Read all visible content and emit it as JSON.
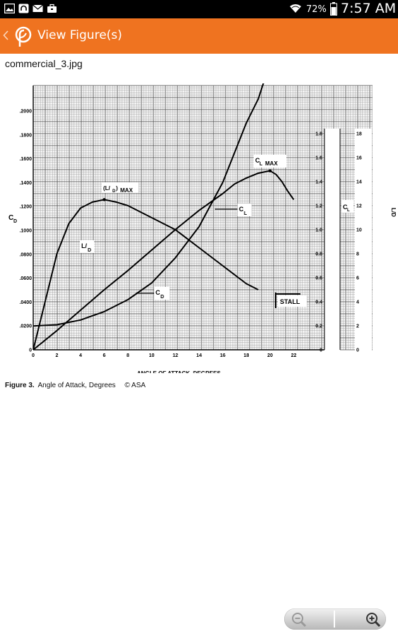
{
  "status_bar": {
    "battery": "72%",
    "time": "7:57 AM",
    "icons": [
      "picture-icon",
      "headset-icon",
      "mail-icon",
      "briefcase-icon",
      "wifi-icon",
      "battery-icon"
    ]
  },
  "app_bar": {
    "title": "View Figure(s)",
    "icons": [
      "back-chevron-icon",
      "app-logo-icon"
    ],
    "color": "#ef7320"
  },
  "file_name": "commercial_3.jpg",
  "figure": {
    "cd_label": "C",
    "cd_sub": "D",
    "cl_label": "C",
    "cl_sub": "L",
    "ld_axis_label": "L/D",
    "xlabel": "ANGLE OF ATTACK, DEGREES",
    "x_ticks": [
      "0",
      "2",
      "4",
      "6",
      "8",
      "10",
      "12",
      "14",
      "16",
      "18",
      "20",
      "22"
    ],
    "cd_ticks": [
      "0",
      ".0200",
      ".0400",
      ".0600",
      ".0800",
      ".1000",
      ".1200",
      ".1400",
      ".1600",
      ".1800",
      ".2000"
    ],
    "cl_ticks": [
      "0",
      "0.2",
      "0.4",
      "0.6",
      "0.8",
      "1.0",
      "1.2",
      "1.4",
      "1.6",
      "1.8"
    ],
    "ld_ticks": [
      "0",
      "2",
      "4",
      "6",
      "8",
      "10",
      "12",
      "14",
      "16",
      "18"
    ],
    "label_ld_max": "MAX",
    "label_ld_max_l": "(L/",
    "label_ld_max_d": "D",
    "label_ld_max_close": ")",
    "label_ld_num": "L/",
    "label_ld_den": "D",
    "label_cl_max": "MAX",
    "label_stall": "STALL"
  },
  "chart_data": {
    "type": "line",
    "xlabel": "ANGLE OF ATTACK, DEGREES",
    "ylabel": "CD",
    "y2label": "CL",
    "y3label": "L/D",
    "xlim": [
      0,
      24
    ],
    "ylim": [
      0,
      0.22
    ],
    "y2lim": [
      0,
      1.8
    ],
    "y3lim": [
      0,
      18
    ],
    "grid": true,
    "series": [
      {
        "name": "CL",
        "axis": "CL",
        "x": [
          0,
          2,
          4,
          6,
          8,
          10,
          12,
          14,
          16,
          17,
          18,
          19,
          19.5,
          20,
          20.5,
          21,
          21.5,
          22
        ],
        "values": [
          0,
          0.16,
          0.33,
          0.5,
          0.66,
          0.83,
          1.0,
          1.16,
          1.3,
          1.38,
          1.43,
          1.47,
          1.48,
          1.49,
          1.46,
          1.4,
          1.32,
          1.25
        ]
      },
      {
        "name": "CD",
        "axis": "CD",
        "x": [
          0,
          2,
          4,
          6,
          8,
          10,
          12,
          14,
          16,
          18,
          19,
          19.5
        ],
        "values": [
          0.02,
          0.021,
          0.025,
          0.032,
          0.042,
          0.056,
          0.077,
          0.103,
          0.14,
          0.19,
          0.21,
          0.225
        ]
      },
      {
        "name": "L/D",
        "axis": "L/D",
        "x": [
          0,
          1,
          2,
          3,
          4,
          5,
          6,
          7,
          8,
          10,
          12,
          14,
          16,
          18,
          19
        ],
        "values": [
          0,
          4,
          8,
          10.5,
          11.8,
          12.3,
          12.5,
          12.3,
          12,
          11,
          10,
          8.5,
          7,
          5.5,
          5
        ]
      }
    ],
    "annotations": [
      "(L/D) MAX",
      "L/D",
      "CL MAX",
      "CL",
      "CD",
      "STALL"
    ]
  },
  "caption": {
    "label": "Figure 3.",
    "text": "Angle of Attack, Degrees",
    "copyright": "© ASA"
  },
  "zoom": {
    "icons": [
      "zoom-out-icon",
      "zoom-in-icon"
    ]
  }
}
